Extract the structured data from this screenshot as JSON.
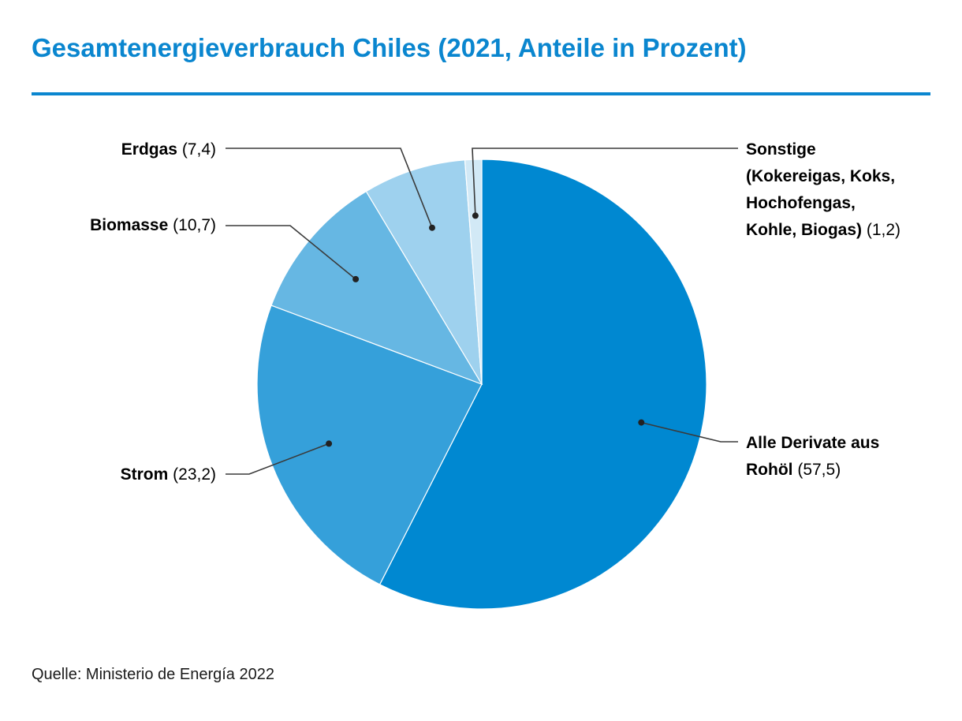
{
  "title": "Gesamtenergieverbrauch Chiles (2021, Anteile in Prozent)",
  "source": "Quelle: Ministerio de Energía 2022",
  "colors": {
    "accent": "#0a86cf"
  },
  "chart_data": {
    "type": "pie",
    "title": "Gesamtenergieverbrauch Chiles (2021, Anteile in Prozent)",
    "start": "12 o'clock",
    "direction": "clockwise",
    "slices": [
      {
        "label": "Alle Derivate aus Rohöl",
        "value": 57.5,
        "value_text": "(57,5)",
        "color": "#0088d1"
      },
      {
        "label": "Strom",
        "value": 23.2,
        "value_text": "(23,2)",
        "color": "#35a0da"
      },
      {
        "label": "Biomasse",
        "value": 10.7,
        "value_text": "(10,7)",
        "color": "#66b7e3"
      },
      {
        "label": "Erdgas",
        "value": 7.4,
        "value_text": "(7,4)",
        "color": "#9ed1ee"
      },
      {
        "label": "Sonstige (Kokereigas, Koks, Hochofengas, Kohle, Biogas)",
        "value": 1.2,
        "value_text": "(1,2)",
        "color": "#d2e9f6"
      }
    ],
    "label_lines": [
      [
        "Alle Derivate aus",
        "Rohöl"
      ],
      [
        "Strom"
      ],
      [
        "Biomasse"
      ],
      [
        "Erdgas"
      ],
      [
        "Sonstige",
        "(Kokereigas, Koks,",
        "Hochofengas,",
        "Kohle, Biogas)"
      ]
    ]
  }
}
